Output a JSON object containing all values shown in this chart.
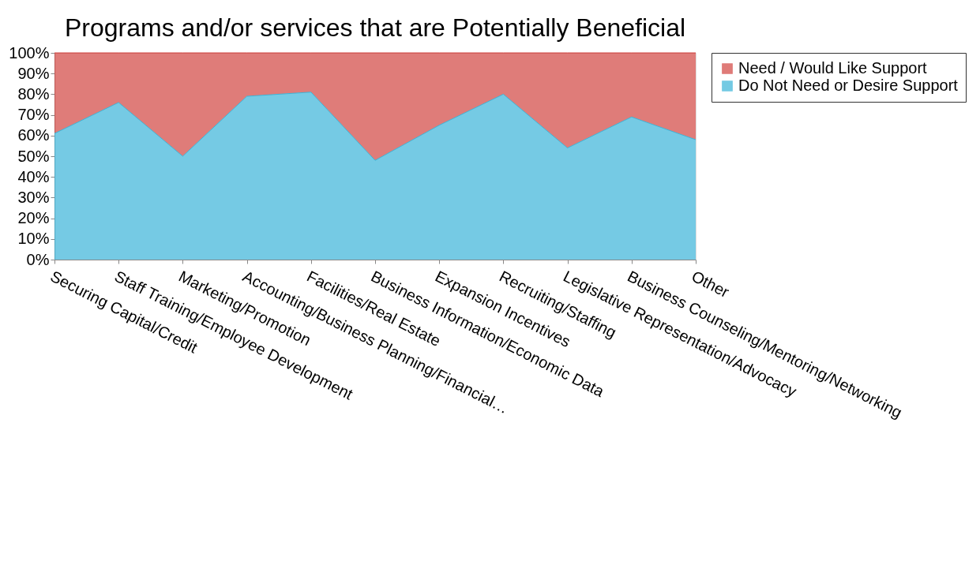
{
  "chart_data": {
    "type": "area",
    "title": "Programs and/or services that are Potentially Beneficial",
    "stacked": true,
    "categories": [
      "Securing Capital/Credit",
      "Staff Training/Employee Development",
      "Marketing/Promotion",
      "Accounting/Business Planning/Financial…",
      "Facilities/Real Estate",
      "Business Information/Economic Data",
      "Expansion Incentives",
      "Recruiting/Staffing",
      "Legislative Representation/Advocacy",
      "Business Counseling/Mentoring/Networking",
      "Other"
    ],
    "series": [
      {
        "name": "Do Not Need or Desire Support",
        "color": "#3ab4d8",
        "values": [
          61,
          76,
          50,
          79,
          81,
          48,
          65,
          80,
          54,
          69,
          58
        ]
      },
      {
        "name": "Need / Would Like Support",
        "color": "#d24440",
        "values": [
          39,
          24,
          50,
          21,
          19,
          52,
          35,
          20,
          46,
          31,
          42
        ]
      }
    ],
    "ylim": [
      0,
      100
    ],
    "yticks": [
      {
        "value": 0,
        "label": "0%"
      },
      {
        "value": 10,
        "label": "10%"
      },
      {
        "value": 20,
        "label": "20%"
      },
      {
        "value": 30,
        "label": "30%"
      },
      {
        "value": 40,
        "label": "40%"
      },
      {
        "value": 50,
        "label": "50%"
      },
      {
        "value": 60,
        "label": "60%"
      },
      {
        "value": 70,
        "label": "70%"
      },
      {
        "value": 80,
        "label": "80%"
      },
      {
        "value": 90,
        "label": "90%"
      },
      {
        "value": 100,
        "label": "100%"
      }
    ],
    "grid": false,
    "legend": "right"
  }
}
